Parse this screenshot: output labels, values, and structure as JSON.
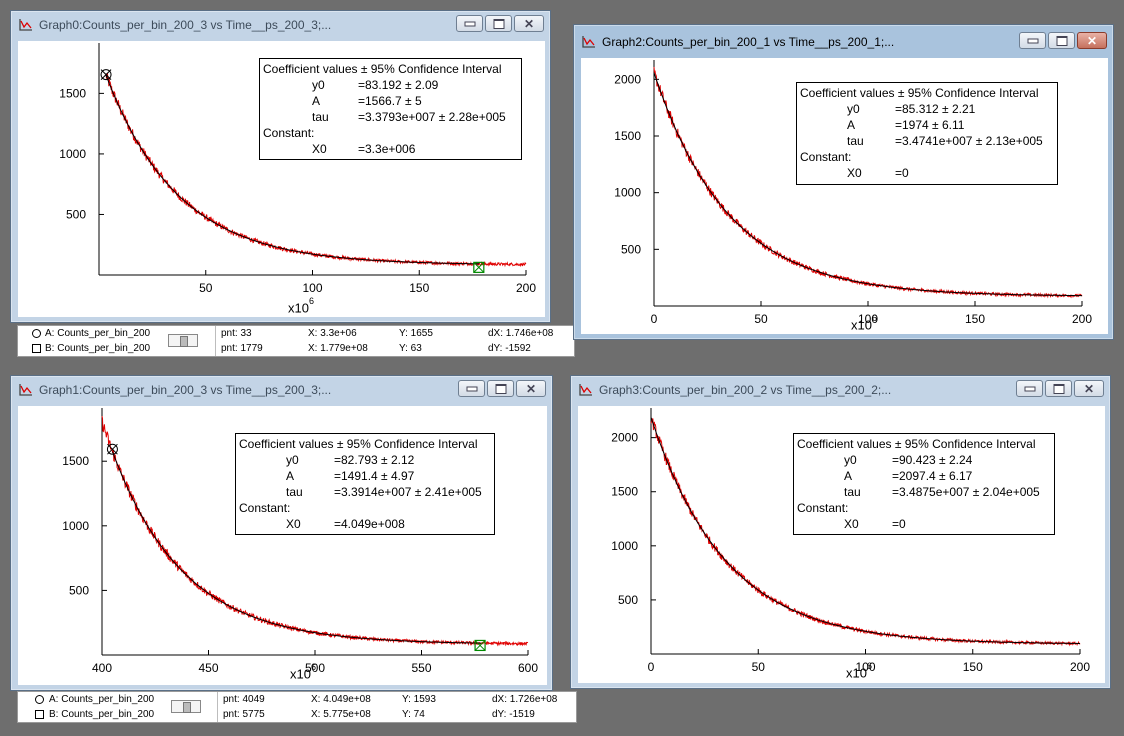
{
  "colors": {
    "data": "#e00000",
    "fit": "#000000",
    "cursor_b": "#008a00",
    "cursor_a": "#000000"
  },
  "windows": [
    {
      "id": "g0",
      "title": "Graph0:Counts_per_bin_200_3 vs Time__ps_200_3;...",
      "coef_header": "Coefficient values ± 95% Confidence Interval",
      "coefs": [
        {
          "name": "y0",
          "val": "=83.192 ± 2.09"
        },
        {
          "name": "A",
          "val": "=1566.7 ± 5"
        },
        {
          "name": "tau",
          "val": "=3.3793e+007 ± 2.28e+005"
        }
      ],
      "const_label": "Constant:",
      "const": {
        "name": "X0",
        "val": "=3.3e+006"
      },
      "xunit": "x10",
      "xunit_exp": "6",
      "xticks": [
        "50",
        "100",
        "150",
        "200"
      ],
      "yticks": [
        "500",
        "1000",
        "1500"
      ]
    },
    {
      "id": "g2",
      "title": "Graph2:Counts_per_bin_200_1 vs Time__ps_200_1;...",
      "coef_header": "Coefficient values ± 95% Confidence Interval",
      "coefs": [
        {
          "name": "y0",
          "val": "=85.312 ± 2.21"
        },
        {
          "name": "A",
          "val": "=1974 ± 6.11"
        },
        {
          "name": "tau",
          "val": "=3.4741e+007 ± 2.13e+005"
        }
      ],
      "const_label": "Constant:",
      "const": {
        "name": "X0",
        "val": "=0"
      },
      "xunit": "x10",
      "xunit_exp": "6",
      "xticks": [
        "0",
        "50",
        "100",
        "150",
        "200"
      ],
      "yticks": [
        "500",
        "1000",
        "1500",
        "2000"
      ]
    },
    {
      "id": "g1",
      "title": "Graph1:Counts_per_bin_200_3 vs Time__ps_200_3;...",
      "coef_header": "Coefficient values ± 95% Confidence Interval",
      "coefs": [
        {
          "name": "y0",
          "val": "=82.793 ± 2.12"
        },
        {
          "name": "A",
          "val": "=1491.4 ± 4.97"
        },
        {
          "name": "tau",
          "val": "=3.3914e+007 ± 2.41e+005"
        }
      ],
      "const_label": "Constant:",
      "const": {
        "name": "X0",
        "val": "=4.049e+008"
      },
      "xunit": "x10",
      "xunit_exp": "6",
      "xticks": [
        "400",
        "450",
        "500",
        "550",
        "600"
      ],
      "yticks": [
        "500",
        "1000",
        "1500"
      ]
    },
    {
      "id": "g3",
      "title": "Graph3:Counts_per_bin_200_2 vs Time__ps_200_2;...",
      "coef_header": "Coefficient values ± 95% Confidence Interval",
      "coefs": [
        {
          "name": "y0",
          "val": "=90.423 ± 2.24"
        },
        {
          "name": "A",
          "val": "=2097.4 ± 6.17"
        },
        {
          "name": "tau",
          "val": "=3.4875e+007 ± 2.04e+005"
        }
      ],
      "const_label": "Constant:",
      "const": {
        "name": "X0",
        "val": "=0"
      },
      "xunit": "x10",
      "xunit_exp": "6",
      "xticks": [
        "0",
        "50",
        "100",
        "150",
        "200"
      ],
      "yticks": [
        "500",
        "1000",
        "1500",
        "2000"
      ]
    }
  ],
  "infobars": [
    {
      "a_label": "A: Counts_per_bin_200",
      "b_label": "B: Counts_per_bin_200",
      "a_pnt": "pnt: 33",
      "a_x": "X: 3.3e+06",
      "a_y": "Y: 1655",
      "dx": "dX: 1.746e+08",
      "b_pnt": "pnt: 1779",
      "b_x": "X: 1.779e+08",
      "b_y": "Y: 63",
      "dy": "dY: -1592"
    },
    {
      "a_label": "A: Counts_per_bin_200",
      "b_label": "B: Counts_per_bin_200",
      "a_pnt": "pnt: 4049",
      "a_x": "X: 4.049e+08",
      "a_y": "Y: 1593",
      "dx": "dX: 1.726e+08",
      "b_pnt": "pnt: 5775",
      "b_x": "X: 5.775e+08",
      "b_y": "Y: 74",
      "dy": "dY: -1519"
    }
  ],
  "chart_data": [
    {
      "type": "line",
      "id": "g0",
      "xlim": [
        0,
        200
      ],
      "ylim": [
        0,
        1850
      ],
      "series": [
        {
          "kind": "data",
          "x_range": [
            3.3,
            200
          ],
          "model": {
            "y0": 83.192,
            "A": 1566.7,
            "tau": 33.793,
            "x0": 3.3
          }
        },
        {
          "kind": "fit",
          "x_range": [
            3.3,
            178
          ],
          "model": {
            "y0": 83.192,
            "A": 1566.7,
            "tau": 33.793,
            "x0": 3.3
          }
        }
      ],
      "cursors": [
        {
          "name": "A",
          "shape": "circle",
          "x": 3.3,
          "y": 1655
        },
        {
          "name": "B",
          "shape": "square",
          "x": 177.9,
          "y": 63
        }
      ]
    },
    {
      "type": "line",
      "id": "g2",
      "xlim": [
        0,
        200
      ],
      "ylim": [
        0,
        2100
      ],
      "series": [
        {
          "kind": "data",
          "x_range": [
            0,
            200
          ],
          "model": {
            "y0": 85.312,
            "A": 1974,
            "tau": 34.741,
            "x0": 0
          }
        },
        {
          "kind": "fit",
          "x_range": [
            0,
            200
          ],
          "model": {
            "y0": 85.312,
            "A": 1974,
            "tau": 34.741,
            "x0": 0
          }
        }
      ],
      "cursors": []
    },
    {
      "type": "line",
      "id": "g1",
      "xlim": [
        400,
        600
      ],
      "ylim": [
        0,
        1850
      ],
      "series": [
        {
          "kind": "data",
          "x_range": [
            400,
            600
          ],
          "model": {
            "y0": 82.793,
            "A": 1491.4,
            "tau": 33.914,
            "x0": 404.9
          }
        },
        {
          "kind": "fit",
          "x_range": [
            404.9,
            578
          ],
          "model": {
            "y0": 82.793,
            "A": 1491.4,
            "tau": 33.914,
            "x0": 404.9
          }
        }
      ],
      "cursors": [
        {
          "name": "A",
          "shape": "circle",
          "x": 404.9,
          "y": 1593
        },
        {
          "name": "B",
          "shape": "square",
          "x": 577.5,
          "y": 74
        }
      ]
    },
    {
      "type": "line",
      "id": "g3",
      "xlim": [
        0,
        200
      ],
      "ylim": [
        0,
        2200
      ],
      "series": [
        {
          "kind": "data",
          "x_range": [
            0,
            200
          ],
          "model": {
            "y0": 90.423,
            "A": 2097.4,
            "tau": 34.875,
            "x0": 0
          }
        },
        {
          "kind": "fit",
          "x_range": [
            0,
            200
          ],
          "model": {
            "y0": 90.423,
            "A": 2097.4,
            "tau": 34.875,
            "x0": 0
          }
        }
      ],
      "cursors": []
    }
  ]
}
